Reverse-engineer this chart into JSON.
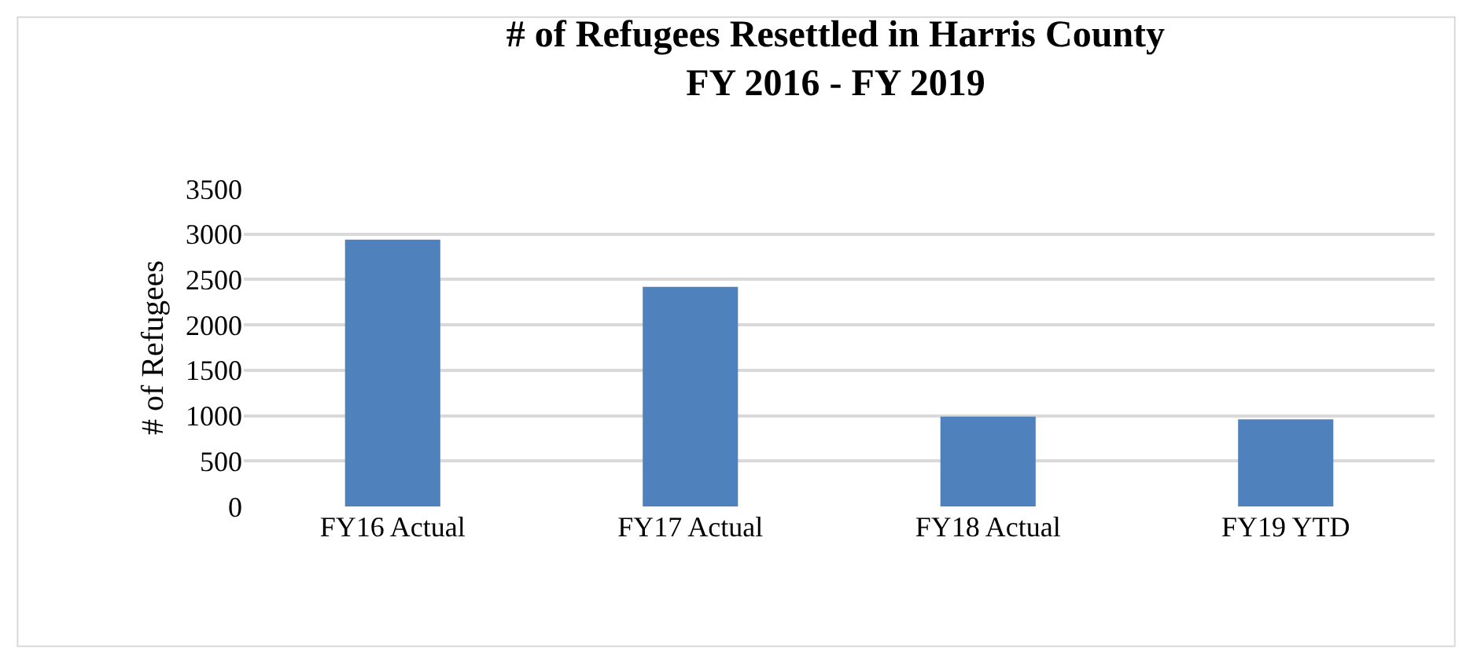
{
  "chart_data": {
    "type": "bar",
    "title": "# of Refugees Resettled in Harris County\nFY 2016 - FY 2019",
    "ylabel": "# of Refugees",
    "categories": [
      "FY16 Actual",
      "FY17 Actual",
      "FY18 Actual",
      "FY19 YTD"
    ],
    "values": [
      2940,
      2420,
      990,
      960
    ],
    "color": "#4f81bd",
    "ylim": [
      0,
      3500
    ],
    "yticks": [
      0,
      500,
      1000,
      1500,
      2000,
      2500,
      3000,
      3500
    ],
    "grid": "y"
  }
}
